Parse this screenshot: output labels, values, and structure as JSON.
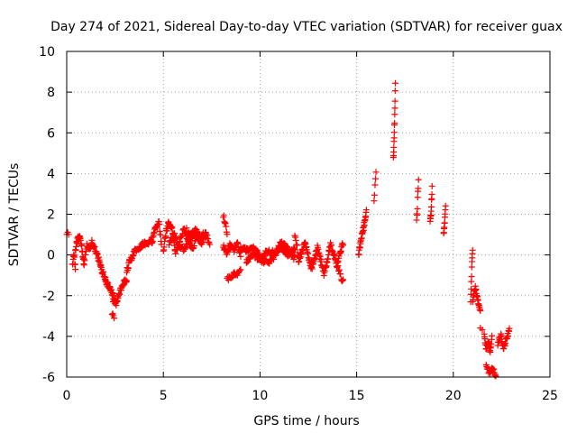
{
  "chart_data": {
    "type": "scatter",
    "title": "Day 274 of 2021, Sidereal Day-to-day VTEC variation (SDTVAR) for receiver guax",
    "xlabel": "GPS time / hours",
    "ylabel": "SDTVAR / TECUs",
    "xlim": [
      0,
      25
    ],
    "ylim": [
      -6,
      10
    ],
    "xticks": [
      0,
      5,
      10,
      15,
      20,
      25
    ],
    "yticks": [
      -6,
      -4,
      -2,
      0,
      2,
      4,
      6,
      8,
      10
    ],
    "grid": true,
    "marker": "+",
    "color": "#ff0000",
    "series": [
      {
        "name": "SDTVAR",
        "segments": [
          {
            "t0": 0.0,
            "t1": 0.1,
            "y": [
              1.1,
              1.0
            ],
            "n": 3
          },
          {
            "t0": 0.3,
            "t1": 0.45,
            "y": [
              -0.5,
              0.2,
              -0.8
            ],
            "n": 10
          },
          {
            "t0": 0.45,
            "t1": 0.9,
            "y": [
              0.2,
              0.8,
              0.9,
              0.3,
              -0.6
            ],
            "n": 26
          },
          {
            "t0": 0.9,
            "t1": 1.3,
            "y": [
              -0.3,
              0.5,
              0.2,
              0.6
            ],
            "n": 18
          },
          {
            "t0": 1.3,
            "t1": 2.0,
            "y": [
              0.5,
              0.3,
              -0.2,
              -0.8,
              -1.2
            ],
            "n": 34
          },
          {
            "t0": 2.0,
            "t1": 2.4,
            "y": [
              -1.3,
              -1.5,
              -1.7,
              -2.0
            ],
            "n": 22
          },
          {
            "t0": 2.35,
            "t1": 2.45,
            "y": [
              -2.8,
              -3.0
            ],
            "n": 4
          },
          {
            "t0": 2.4,
            "t1": 3.1,
            "y": [
              -2.2,
              -2.4,
              -1.8,
              -1.4,
              -1.2
            ],
            "n": 36
          },
          {
            "t0": 3.1,
            "t1": 3.6,
            "y": [
              -0.8,
              -0.3,
              0.0,
              0.3
            ],
            "n": 24
          },
          {
            "t0": 3.6,
            "t1": 4.4,
            "y": [
              0.2,
              0.4,
              0.6,
              0.5,
              0.8
            ],
            "n": 34
          },
          {
            "t0": 4.4,
            "t1": 4.9,
            "y": [
              0.6,
              1.1,
              1.4,
              1.6,
              0.5
            ],
            "n": 24
          },
          {
            "t0": 5.0,
            "t1": 5.6,
            "y": [
              0.2,
              1.2,
              1.6,
              1.3,
              0.3
            ],
            "n": 30
          },
          {
            "t0": 5.3,
            "t1": 6.8,
            "y": [
              0.6,
              1.0,
              0.5,
              1.3,
              0.7,
              1.2,
              0.8
            ],
            "n": 60
          },
          {
            "t0": 5.6,
            "t1": 7.2,
            "y": [
              0.1,
              0.5,
              0.2,
              0.7,
              0.3,
              0.9,
              0.6,
              1.0
            ],
            "n": 54
          },
          {
            "t0": 6.2,
            "t1": 7.4,
            "y": [
              1.2,
              0.8,
              1.3,
              0.9,
              1.1,
              0.6
            ],
            "n": 36
          },
          {
            "t0": 8.1,
            "t1": 8.3,
            "y": [
              1.9,
              1.6,
              1.0
            ],
            "n": 8
          },
          {
            "t0": 8.1,
            "t1": 9.0,
            "y": [
              0.4,
              0.1,
              0.5,
              0.2,
              0.6,
              0.0
            ],
            "n": 44
          },
          {
            "t0": 8.3,
            "t1": 9.0,
            "y": [
              -1.2,
              -1.0,
              -0.9,
              -0.8
            ],
            "n": 22
          },
          {
            "t0": 9.0,
            "t1": 11.8,
            "y": [
              0.4,
              0.2,
              0.3,
              -0.1,
              0.2,
              0.1,
              0.4,
              0.0,
              0.3
            ],
            "n": 110
          },
          {
            "t0": 9.3,
            "t1": 11.8,
            "y": [
              -0.3,
              0.0,
              -0.2,
              -0.4,
              -0.1,
              0.6,
              0.3,
              -0.2
            ],
            "n": 90
          },
          {
            "t0": 11.8,
            "t1": 12.0,
            "y": [
              1.0,
              0.5,
              -0.2
            ],
            "n": 8
          },
          {
            "t0": 12.0,
            "t1": 14.3,
            "y": [
              -0.3,
              0.6,
              -0.7,
              0.4,
              -1.0,
              0.5,
              -0.5,
              0.6
            ],
            "n": 110
          },
          {
            "t0": 14.0,
            "t1": 14.3,
            "y": [
              -0.5,
              -1.0,
              -1.3
            ],
            "n": 10
          },
          {
            "t0": 15.1,
            "t1": 15.5,
            "y": [
              0.0,
              0.8,
              1.4,
              2.1
            ],
            "n": 28
          },
          {
            "t0": 15.9,
            "t1": 16.0,
            "y": [
              2.7,
              4.0
            ],
            "n": 5
          },
          {
            "t0": 16.9,
            "t1": 17.0,
            "y": [
              4.8,
              5.6,
              6.7,
              8.5
            ],
            "n": 14
          },
          {
            "t0": 18.1,
            "t1": 18.2,
            "y": [
              1.8,
              2.1,
              3.1,
              3.6
            ],
            "n": 8
          },
          {
            "t0": 18.8,
            "t1": 18.9,
            "y": [
              1.7,
              2.1,
              3.3
            ],
            "n": 12
          },
          {
            "t0": 19.5,
            "t1": 19.6,
            "y": [
              1.1,
              1.5,
              2.3
            ],
            "n": 10
          },
          {
            "t0": 20.9,
            "t1": 21.0,
            "y": [
              -2.2,
              -0.8,
              0.3
            ],
            "n": 10
          },
          {
            "t0": 21.0,
            "t1": 21.4,
            "y": [
              -2.3,
              -1.6,
              -2.2,
              -2.8
            ],
            "n": 24
          },
          {
            "t0": 21.4,
            "t1": 21.5,
            "y": [
              -3.7
            ],
            "n": 2
          },
          {
            "t0": 21.6,
            "t1": 22.0,
            "y": [
              -3.9,
              -4.6,
              -4.2,
              -4.8,
              -4.0
            ],
            "n": 24
          },
          {
            "t0": 21.7,
            "t1": 22.2,
            "y": [
              -5.5,
              -5.8,
              -5.6,
              -5.9
            ],
            "n": 20
          },
          {
            "t0": 22.3,
            "t1": 22.9,
            "y": [
              -4.4,
              -3.9,
              -4.6,
              -4.1,
              -3.7
            ],
            "n": 30
          }
        ]
      }
    ]
  }
}
